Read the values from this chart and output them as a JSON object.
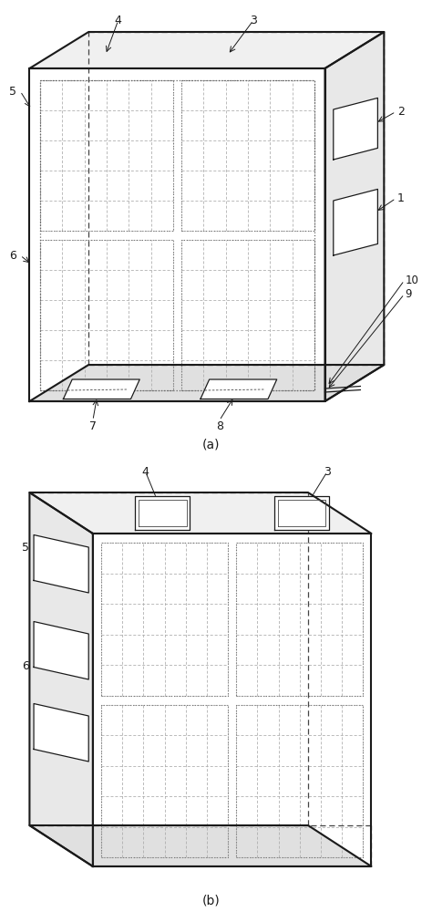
{
  "fig_width": 4.63,
  "fig_height": 10.0,
  "bg_color": "#ffffff",
  "lc": "#1a1a1a",
  "dc": "#444444",
  "gc": "#777777",
  "pc": "#999999"
}
